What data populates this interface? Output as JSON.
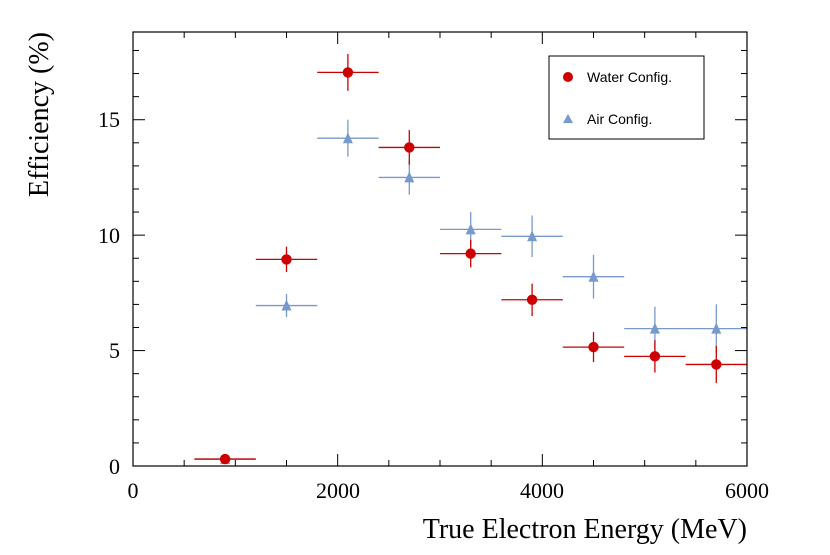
{
  "chart_data": {
    "type": "scatter",
    "title": "",
    "xlabel": "True Electron Energy (MeV)",
    "ylabel": "Efficiency (%)",
    "xlim": [
      0,
      6000
    ],
    "ylim": [
      0,
      18.8
    ],
    "xticks": [
      0,
      2000,
      4000,
      6000
    ],
    "yticks": [
      0,
      5,
      10,
      15
    ],
    "xtick_labels": [
      "0",
      "2000",
      "4000",
      "6000"
    ],
    "ytick_labels": [
      "0",
      "5",
      "10",
      "15"
    ],
    "legend_position": "top-right",
    "series": [
      {
        "name": "Water Config.",
        "color": "#cc0000",
        "marker": "circle",
        "points": [
          {
            "x": 900,
            "xerr": 300,
            "y": 0.3,
            "yerr": 0.1
          },
          {
            "x": 1500,
            "xerr": 300,
            "y": 8.95,
            "yerr": 0.55
          },
          {
            "x": 2100,
            "xerr": 300,
            "y": 17.05,
            "yerr": 0.8
          },
          {
            "x": 2700,
            "xerr": 300,
            "y": 13.8,
            "yerr": 0.75
          },
          {
            "x": 3300,
            "xerr": 300,
            "y": 9.2,
            "yerr": 0.6
          },
          {
            "x": 3900,
            "xerr": 300,
            "y": 7.2,
            "yerr": 0.7
          },
          {
            "x": 4500,
            "xerr": 300,
            "y": 5.15,
            "yerr": 0.65
          },
          {
            "x": 5100,
            "xerr": 300,
            "y": 4.75,
            "yerr": 0.7
          },
          {
            "x": 5700,
            "xerr": 300,
            "y": 4.4,
            "yerr": 0.8
          }
        ]
      },
      {
        "name": "Air Config.",
        "color": "#7799cc",
        "marker": "triangle",
        "points": [
          {
            "x": 900,
            "xerr": 300,
            "y": 0.3,
            "yerr": 0.1
          },
          {
            "x": 1500,
            "xerr": 300,
            "y": 6.95,
            "yerr": 0.5
          },
          {
            "x": 2100,
            "xerr": 300,
            "y": 14.2,
            "yerr": 0.8
          },
          {
            "x": 2700,
            "xerr": 300,
            "y": 12.5,
            "yerr": 0.75
          },
          {
            "x": 3300,
            "xerr": 300,
            "y": 10.25,
            "yerr": 0.75
          },
          {
            "x": 3900,
            "xerr": 300,
            "y": 9.95,
            "yerr": 0.9
          },
          {
            "x": 4500,
            "xerr": 300,
            "y": 8.2,
            "yerr": 0.95
          },
          {
            "x": 5100,
            "xerr": 300,
            "y": 5.95,
            "yerr": 0.95
          },
          {
            "x": 5700,
            "xerr": 300,
            "y": 5.95,
            "yerr": 1.05
          }
        ]
      }
    ]
  }
}
